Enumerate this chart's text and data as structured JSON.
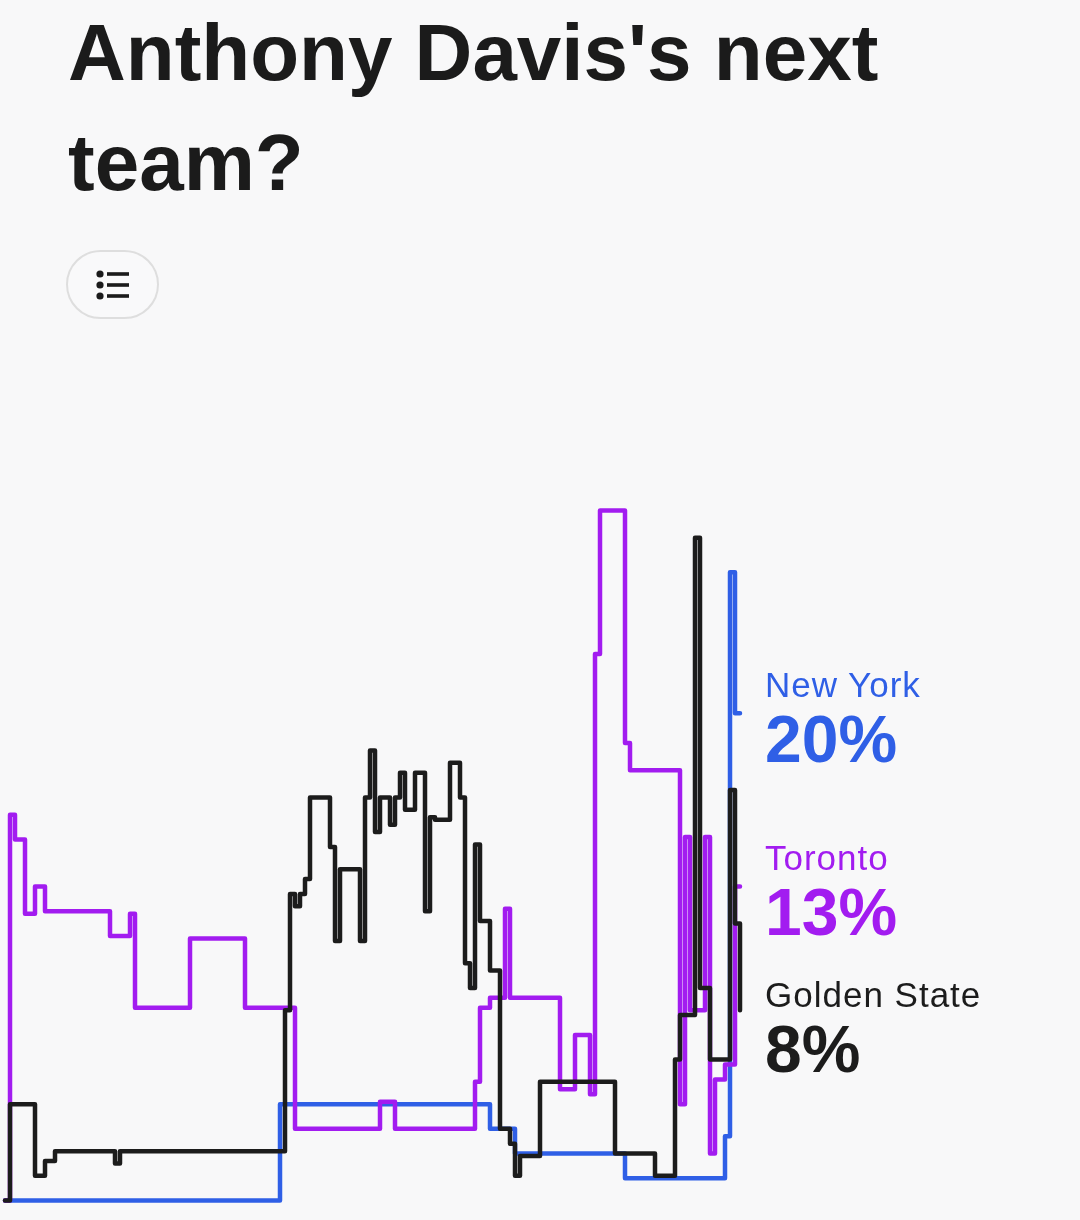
{
  "chart_data": {
    "type": "step",
    "title": "Anthony Davis's next team?",
    "categories": [
      null,
      null,
      null,
      null,
      null,
      null,
      null,
      null,
      null,
      null,
      null,
      null,
      null,
      null,
      null,
      null,
      null,
      null,
      null,
      null,
      null,
      null,
      null,
      null,
      null,
      null,
      null,
      null,
      null,
      null,
      null,
      null,
      null,
      null,
      null,
      null,
      null,
      null,
      null,
      null,
      null,
      null,
      null,
      null,
      null,
      null,
      null,
      null,
      null,
      null,
      null,
      null,
      null,
      null,
      null,
      null,
      null,
      null,
      null,
      null,
      null,
      null,
      null,
      null,
      null,
      null,
      null,
      null,
      null,
      null,
      null,
      null,
      null,
      null,
      null,
      null,
      null,
      null,
      null,
      null,
      null,
      null,
      null,
      null,
      null,
      null,
      null,
      null,
      null,
      null,
      null,
      null,
      null,
      null,
      null,
      null,
      null,
      null,
      null,
      null,
      null,
      null,
      null,
      null,
      null,
      null,
      null,
      null,
      null,
      null,
      null,
      null,
      null,
      null,
      null,
      null,
      null,
      null,
      null,
      null,
      null,
      null,
      null,
      null,
      null,
      null,
      null,
      null,
      null,
      null,
      null,
      null,
      null,
      null,
      null,
      null,
      null,
      null,
      null,
      null,
      null,
      null,
      null,
      null,
      null,
      null,
      null,
      null
    ],
    "tick_labels": false,
    "series": [
      {
        "name": "New York",
        "color": "#2f5fe6",
        "values": [
          0.3,
          0.3,
          0.3,
          0.3,
          0.3,
          0.3,
          0.3,
          0.3,
          0.3,
          0.3,
          0.3,
          0.3,
          0.3,
          0.3,
          0.3,
          0.3,
          0.3,
          0.3,
          0.3,
          0.3,
          0.3,
          0.3,
          0.3,
          0.3,
          0.3,
          0.3,
          0.3,
          0.3,
          0.3,
          0.3,
          0.3,
          0.3,
          0.3,
          0.3,
          0.3,
          0.3,
          0.3,
          0.3,
          0.3,
          0.3,
          0.3,
          0.3,
          0.3,
          0.3,
          0.3,
          0.3,
          0.3,
          0.3,
          0.3,
          0.3,
          0.3,
          0.3,
          0.3,
          0.3,
          0.3,
          4.2,
          4.2,
          4.2,
          4.2,
          4.2,
          4.2,
          4.2,
          4.2,
          4.2,
          4.2,
          4.2,
          4.2,
          4.2,
          4.2,
          4.2,
          4.2,
          4.2,
          4.2,
          4.2,
          4.2,
          4.2,
          4.2,
          4.2,
          4.2,
          4.2,
          4.2,
          4.2,
          4.2,
          4.2,
          4.2,
          4.2,
          4.2,
          4.2,
          4.2,
          4.2,
          4.2,
          4.2,
          4.2,
          4.2,
          4.2,
          4.2,
          4.2,
          3.2,
          3.2,
          3.2,
          3.2,
          3.2,
          2.2,
          2.2,
          2.2,
          2.2,
          2.2,
          2.2,
          2.2,
          2.2,
          2.2,
          2.2,
          2.2,
          2.2,
          2.2,
          2.2,
          2.2,
          2.2,
          2.2,
          2.2,
          2.2,
          2.2,
          2.2,
          2.2,
          1.2,
          1.2,
          1.2,
          1.2,
          1.2,
          1.2,
          1.2,
          1.2,
          1.2,
          1.2,
          1.2,
          1.2,
          1.2,
          1.2,
          1.2,
          1.2,
          1.2,
          1.2,
          1.2,
          1.2,
          2.9,
          25.7,
          20,
          20
        ],
        "value_labels": [
          null,
          null,
          null,
          null,
          null,
          null,
          null,
          null,
          null,
          null,
          null,
          null,
          null,
          null,
          null,
          null,
          null,
          null,
          null,
          null,
          null,
          null,
          null,
          null,
          null,
          null,
          null,
          null,
          null,
          null,
          null,
          null,
          null,
          null,
          null,
          null,
          null,
          null,
          null,
          null,
          null,
          null,
          null,
          null,
          null,
          null,
          null,
          null,
          null,
          null,
          null,
          null,
          null,
          null,
          null,
          null,
          null,
          null,
          null,
          null,
          null,
          null,
          null,
          null,
          null,
          null,
          null,
          null,
          null,
          null,
          null,
          null,
          null,
          null,
          null,
          null,
          null,
          null,
          null,
          null,
          null,
          null,
          null,
          null,
          null,
          null,
          null,
          null,
          null,
          null,
          null,
          null,
          null,
          null,
          null,
          null,
          null,
          null,
          null,
          null,
          null,
          null,
          null,
          null,
          null,
          null,
          null,
          null,
          null,
          null,
          null,
          null,
          null,
          null,
          null,
          null,
          null,
          null,
          null,
          null,
          null,
          null,
          null,
          null,
          null,
          null,
          null,
          null,
          null,
          null,
          null,
          null,
          null,
          null,
          null,
          null,
          null,
          null,
          null,
          null,
          null,
          null,
          null,
          null,
          null,
          null,
          null,
          "20%"
        ]
      },
      {
        "name": "Toronto",
        "color": "#a21cf0",
        "values": [
          0.3,
          15.9,
          14.9,
          14.9,
          11.9,
          11.9,
          13,
          13,
          12,
          12,
          12,
          12,
          12,
          12,
          12,
          12,
          12,
          12,
          12,
          12,
          12,
          11,
          11,
          11,
          11,
          11.9,
          8.1,
          8.1,
          8.1,
          8.1,
          8.1,
          8.1,
          8.1,
          8.1,
          8.1,
          8.1,
          8.1,
          10.9,
          10.9,
          10.9,
          10.9,
          10.9,
          10.9,
          10.9,
          10.9,
          10.9,
          10.9,
          10.9,
          8.1,
          8.1,
          8.1,
          8.1,
          8.1,
          8.1,
          8.1,
          8.1,
          8.1,
          8.1,
          3.2,
          3.2,
          3.2,
          3.2,
          3.2,
          3.2,
          3.2,
          3.2,
          3.2,
          3.2,
          3.2,
          3.2,
          3.2,
          3.2,
          3.2,
          3.2,
          3.2,
          4.3,
          4.3,
          4.3,
          3.2,
          3.2,
          3.2,
          3.2,
          3.2,
          3.2,
          3.2,
          3.2,
          3.2,
          3.2,
          3.2,
          3.2,
          3.2,
          3.2,
          3.2,
          3.2,
          5.1,
          8.1,
          8.1,
          8.5,
          8.5,
          8.5,
          12.1,
          8.5,
          8.5,
          8.5,
          8.5,
          8.5,
          8.5,
          8.5,
          8.5,
          8.5,
          8.5,
          4.8,
          4.8,
          4.8,
          7,
          7,
          7,
          4.6,
          22.4,
          28.2,
          28.2,
          28.2,
          28.2,
          28.2,
          18.8,
          17.7,
          17.7,
          17.7,
          17.7,
          17.7,
          17.7,
          17.7,
          17.7,
          17.7,
          17.7,
          4.2,
          15,
          8,
          8,
          8,
          15,
          2.2,
          5.2,
          5.2,
          5.8,
          5.8,
          13,
          13
        ],
        "value_labels": [
          null,
          null,
          null,
          null,
          null,
          null,
          null,
          null,
          null,
          null,
          null,
          null,
          null,
          null,
          null,
          null,
          null,
          null,
          null,
          null,
          null,
          null,
          null,
          null,
          null,
          null,
          null,
          null,
          null,
          null,
          null,
          null,
          null,
          null,
          null,
          null,
          null,
          null,
          null,
          null,
          null,
          null,
          null,
          null,
          null,
          null,
          null,
          null,
          null,
          null,
          null,
          null,
          null,
          null,
          null,
          null,
          null,
          null,
          null,
          null,
          null,
          null,
          null,
          null,
          null,
          null,
          null,
          null,
          null,
          null,
          null,
          null,
          null,
          null,
          null,
          null,
          null,
          null,
          null,
          null,
          null,
          null,
          null,
          null,
          null,
          null,
          null,
          null,
          null,
          null,
          null,
          null,
          null,
          null,
          null,
          null,
          null,
          null,
          null,
          null,
          null,
          null,
          null,
          null,
          null,
          null,
          null,
          null,
          null,
          null,
          null,
          null,
          null,
          null,
          null,
          null,
          null,
          null,
          null,
          null,
          null,
          null,
          null,
          null,
          null,
          null,
          null,
          null,
          null,
          null,
          null,
          null,
          null,
          null,
          null,
          null,
          null,
          null,
          null,
          null,
          null,
          null,
          null,
          null,
          null,
          null,
          null,
          "13%"
        ]
      },
      {
        "name": "Golden State",
        "color": "#1c1c1c",
        "values": [
          0.3,
          4.2,
          4.2,
          4.2,
          4.2,
          4.2,
          1.3,
          1.3,
          1.9,
          1.9,
          2.3,
          2.3,
          2.3,
          2.3,
          2.3,
          2.3,
          2.3,
          2.3,
          2.3,
          2.3,
          2.3,
          2.3,
          1.8,
          2.3,
          2.3,
          2.3,
          2.3,
          2.3,
          2.3,
          2.3,
          2.3,
          2.3,
          2.3,
          2.3,
          2.3,
          2.3,
          2.3,
          2.3,
          2.3,
          2.3,
          2.3,
          2.3,
          2.3,
          2.3,
          2.3,
          2.3,
          2.3,
          2.3,
          2.3,
          2.3,
          2.3,
          2.3,
          2.3,
          2.3,
          2.3,
          2.3,
          8,
          12.7,
          12.2,
          12.7,
          13.3,
          16.6,
          16.6,
          16.6,
          16.6,
          14.6,
          10.8,
          13.7,
          13.7,
          13.7,
          13.7,
          10.8,
          16.6,
          18.5,
          15.2,
          16.6,
          16.6,
          15.5,
          16.6,
          17.6,
          16.1,
          16.1,
          17.6,
          17.6,
          12,
          15.8,
          15.7,
          15.7,
          15.7,
          18,
          18,
          16.6,
          9.9,
          8.9,
          14.7,
          11.6,
          11.6,
          9.6,
          9.6,
          3.2,
          3.2,
          2.6,
          1.3,
          2.1,
          2.1,
          2.1,
          2.1,
          5.1,
          5.1,
          5.1,
          5.1,
          5.1,
          5.1,
          5.1,
          5.1,
          5.1,
          5.1,
          5.1,
          5.1,
          5.1,
          5.1,
          5.1,
          2.2,
          2.2,
          2.2,
          2.2,
          2.2,
          2.2,
          2.2,
          2.2,
          1.3,
          1.3,
          1.3,
          1.3,
          6,
          7.8,
          7.8,
          7.8,
          27.1,
          8.9,
          8.9,
          6,
          6,
          6,
          6,
          16.9,
          11.5,
          8
        ],
        "value_labels": [
          null,
          null,
          null,
          null,
          null,
          null,
          null,
          null,
          null,
          null,
          null,
          null,
          null,
          null,
          null,
          null,
          null,
          null,
          null,
          null,
          null,
          null,
          null,
          null,
          null,
          null,
          null,
          null,
          null,
          null,
          null,
          null,
          null,
          null,
          null,
          null,
          null,
          null,
          null,
          null,
          null,
          null,
          null,
          null,
          null,
          null,
          null,
          null,
          null,
          null,
          null,
          null,
          null,
          null,
          null,
          null,
          null,
          null,
          null,
          null,
          null,
          null,
          null,
          null,
          null,
          null,
          null,
          null,
          null,
          null,
          null,
          null,
          null,
          null,
          null,
          null,
          null,
          null,
          null,
          null,
          null,
          null,
          null,
          null,
          null,
          null,
          null,
          null,
          null,
          null,
          null,
          null,
          null,
          null,
          null,
          null,
          null,
          null,
          null,
          null,
          null,
          null,
          null,
          null,
          null,
          null,
          null,
          null,
          null,
          null,
          null,
          null,
          null,
          null,
          null,
          null,
          null,
          null,
          null,
          null,
          null,
          null,
          null,
          null,
          null,
          null,
          null,
          null,
          null,
          null,
          null,
          null,
          null,
          null,
          null,
          null,
          null,
          null,
          null,
          null,
          null,
          null,
          null,
          null,
          null,
          null,
          null,
          "8%"
        ]
      }
    ]
  }
}
